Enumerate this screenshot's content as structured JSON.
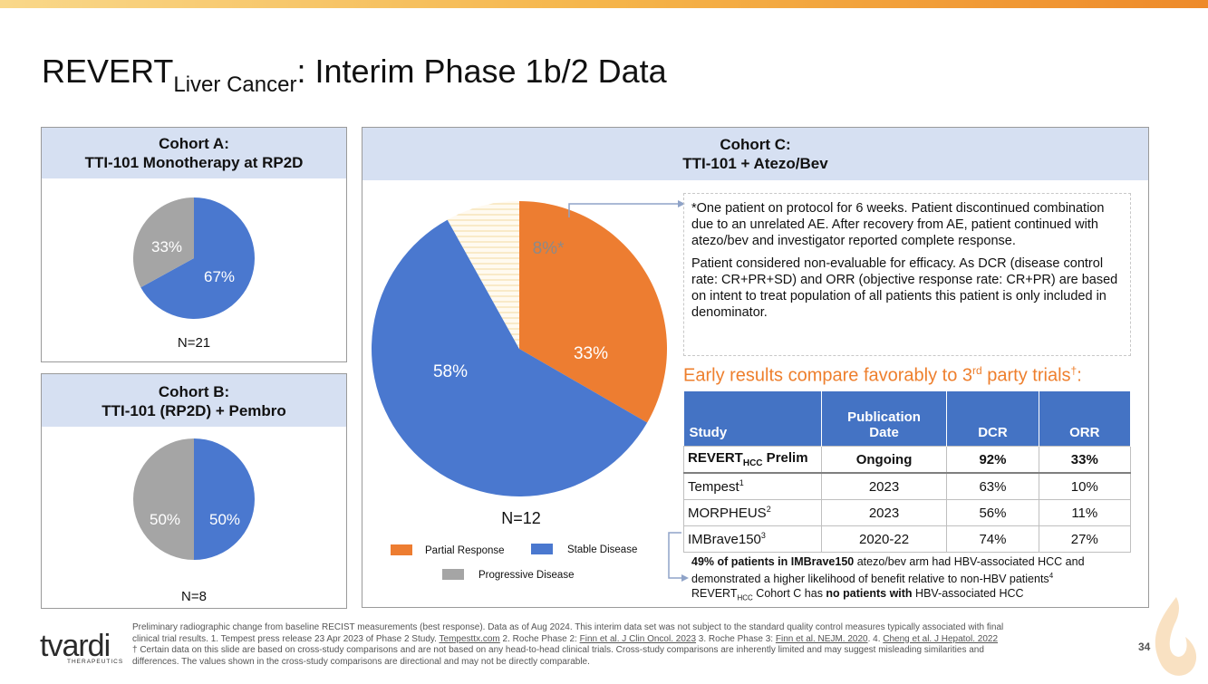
{
  "header": {
    "title_main": "REVERT",
    "title_sub": "Liver Cancer",
    "title_rest": ": Interim Phase 1b/2 Data"
  },
  "cohort_a": {
    "title_line1": "Cohort A:",
    "title_line2": "TTI-101 Monotherapy at RP2D",
    "n_label": "N=21",
    "slices": [
      {
        "label": "67%",
        "value": 67,
        "color": "#4a78cf"
      },
      {
        "label": "33%",
        "value": 33,
        "color": "#a5a5a5"
      }
    ]
  },
  "cohort_b": {
    "title_line1": "Cohort B:",
    "title_line2": "TTI-101 (RP2D) + Pembro",
    "n_label": "N=8",
    "slices": [
      {
        "label": "50%",
        "value": 50,
        "color": "#4a78cf"
      },
      {
        "label": "50%",
        "value": 50,
        "color": "#a5a5a5"
      }
    ]
  },
  "cohort_c": {
    "title_line1": "Cohort C:",
    "title_line2": "TTI-101 + Atezo/Bev",
    "n_label": "N=12",
    "slices": [
      {
        "label": "33%",
        "value": 33,
        "color": "#ed7d31"
      },
      {
        "label": "58%",
        "value": 58,
        "color": "#4a78cf"
      },
      {
        "label": "8%*",
        "value": 8,
        "color": "#fbf0d0"
      }
    ],
    "legend": {
      "partial": "Partial Response",
      "stable": "Stable Disease",
      "progressive": "Progressive Disease"
    },
    "note_p1": "*One patient on protocol for 6 weeks. Patient discontinued combination due to an unrelated AE. After recovery from AE, patient continued with atezo/bev and investigator reported complete response.",
    "note_p2": "Patient considered non-evaluable for efficacy. As DCR (disease control rate: CR+PR+SD) and ORR (objective response rate: CR+PR) are based on intent to treat population of all patients this patient is only included in denominator."
  },
  "comparison": {
    "heading_pre": "Early results compare favorably to 3",
    "heading_sup": "rd",
    "heading_post": " party trials",
    "heading_mark": "†",
    "heading_colon": ":",
    "columns": {
      "study": "Study",
      "pub_line1": "Publication",
      "pub_line2": "Date",
      "dcr": "DCR",
      "orr": "ORR"
    },
    "row1": {
      "study": "REVERT",
      "study_sub": "HCC",
      "study_suffix": " Prelim",
      "date": "Ongoing",
      "dcr": "92%",
      "orr": "33%"
    },
    "row2": {
      "study": "Tempest",
      "sup": "1",
      "date": "2023",
      "dcr": "63%",
      "orr": "10%"
    },
    "row3": {
      "study": "MORPHEUS",
      "sup": "2",
      "date": "2023",
      "dcr": "56%",
      "orr": "11%"
    },
    "row4": {
      "study": "IMBrave150",
      "sup": "3",
      "date": "2020-22",
      "dcr": "74%",
      "orr": "27%"
    }
  },
  "hbv": {
    "bold1": "49% of patients in IMBrave150",
    "text1": " atezo/bev arm had HBV-associated HCC and demonstrated a higher likelihood of benefit relative to non-HBV patients",
    "sup1": "4",
    "pre2": "REVERT",
    "sub2": "HCC",
    "text2": " Cohort C has ",
    "bold2": "no patients with",
    "text3": " HBV-associated HCC"
  },
  "footer": {
    "line1": "Preliminary radiographic change from baseline RECIST measurements (best response). Data as of Aug 2024. This interim data set was not subject to the standard quality control measures typically associated with final",
    "line2a": "clinical trial results. 1. Tempest press release 23 Apr 2023 of Phase 2 Study. ",
    "link1": "Tempesttx.com",
    "line2b": " 2. Roche Phase 2: ",
    "link2": "Finn et al. J Clin Oncol. 2023",
    "line2c": " 3. Roche Phase 3: ",
    "link3": "Finn et al. NEJM. 2020",
    "line2d": ". 4. ",
    "link4": "Cheng et al. J Hepatol. 2022",
    "line3": "† Certain data on this slide are based on cross-study comparisons and are not based on any head-to-head clinical trials. Cross-study comparisons are inherently limited and may suggest misleading similarities and",
    "line4": "differences. The values shown in the cross-study comparisons are directional and may not be directly comparable.",
    "logo_text": "tvardi",
    "logo_sub": "THERAPEUTICS",
    "page_number": "34"
  }
}
